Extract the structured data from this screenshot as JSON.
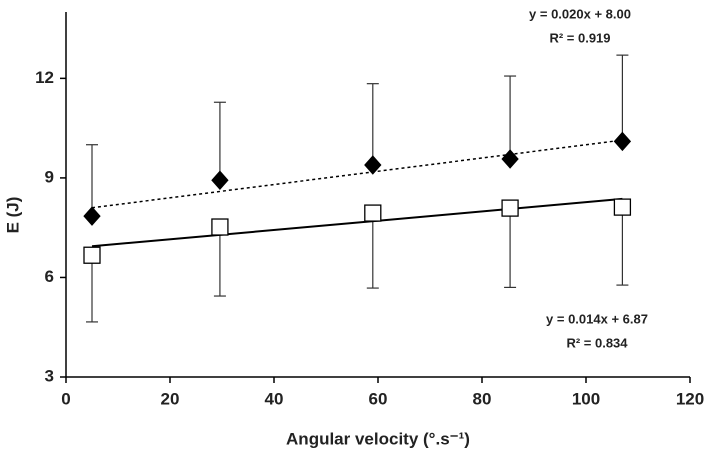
{
  "chart_data": {
    "type": "scatter",
    "x_label": "Angular velocity (°.s⁻¹)",
    "y_label": "E (J)",
    "xlim": [
      0,
      120
    ],
    "xticks": [
      0,
      20,
      40,
      60,
      80,
      100,
      120
    ],
    "ylim": [
      3,
      14
    ],
    "yticks": [
      3,
      6,
      9,
      12
    ],
    "series": [
      {
        "marker": "diamond",
        "color": "#000000",
        "fill": "#000000",
        "error_direction": "up",
        "line_style": "dashed",
        "x": [
          5,
          29.6,
          59,
          85.4,
          107
        ],
        "values": [
          7.85,
          8.93,
          9.39,
          9.57,
          10.1
        ],
        "errors": [
          2.15,
          2.35,
          2.45,
          2.5,
          2.6
        ],
        "trendline": {
          "slope": 0.02,
          "intercept": 8.0,
          "equation": "y = 0.020x + 8.00",
          "r2": "R² = 0.919"
        }
      },
      {
        "marker": "square",
        "color": "#000000",
        "fill": "#ffffff",
        "error_direction": "down",
        "line_style": "solid",
        "x": [
          5,
          29.6,
          59,
          85.4,
          107
        ],
        "values": [
          6.67,
          7.52,
          7.94,
          8.09,
          8.12
        ],
        "errors": [
          2.01,
          2.08,
          2.26,
          2.39,
          2.35
        ],
        "trendline": {
          "slope": 0.014,
          "intercept": 6.87,
          "equation": "y = 0.014x + 6.87",
          "r2": "R² = 0.834"
        }
      }
    ]
  }
}
